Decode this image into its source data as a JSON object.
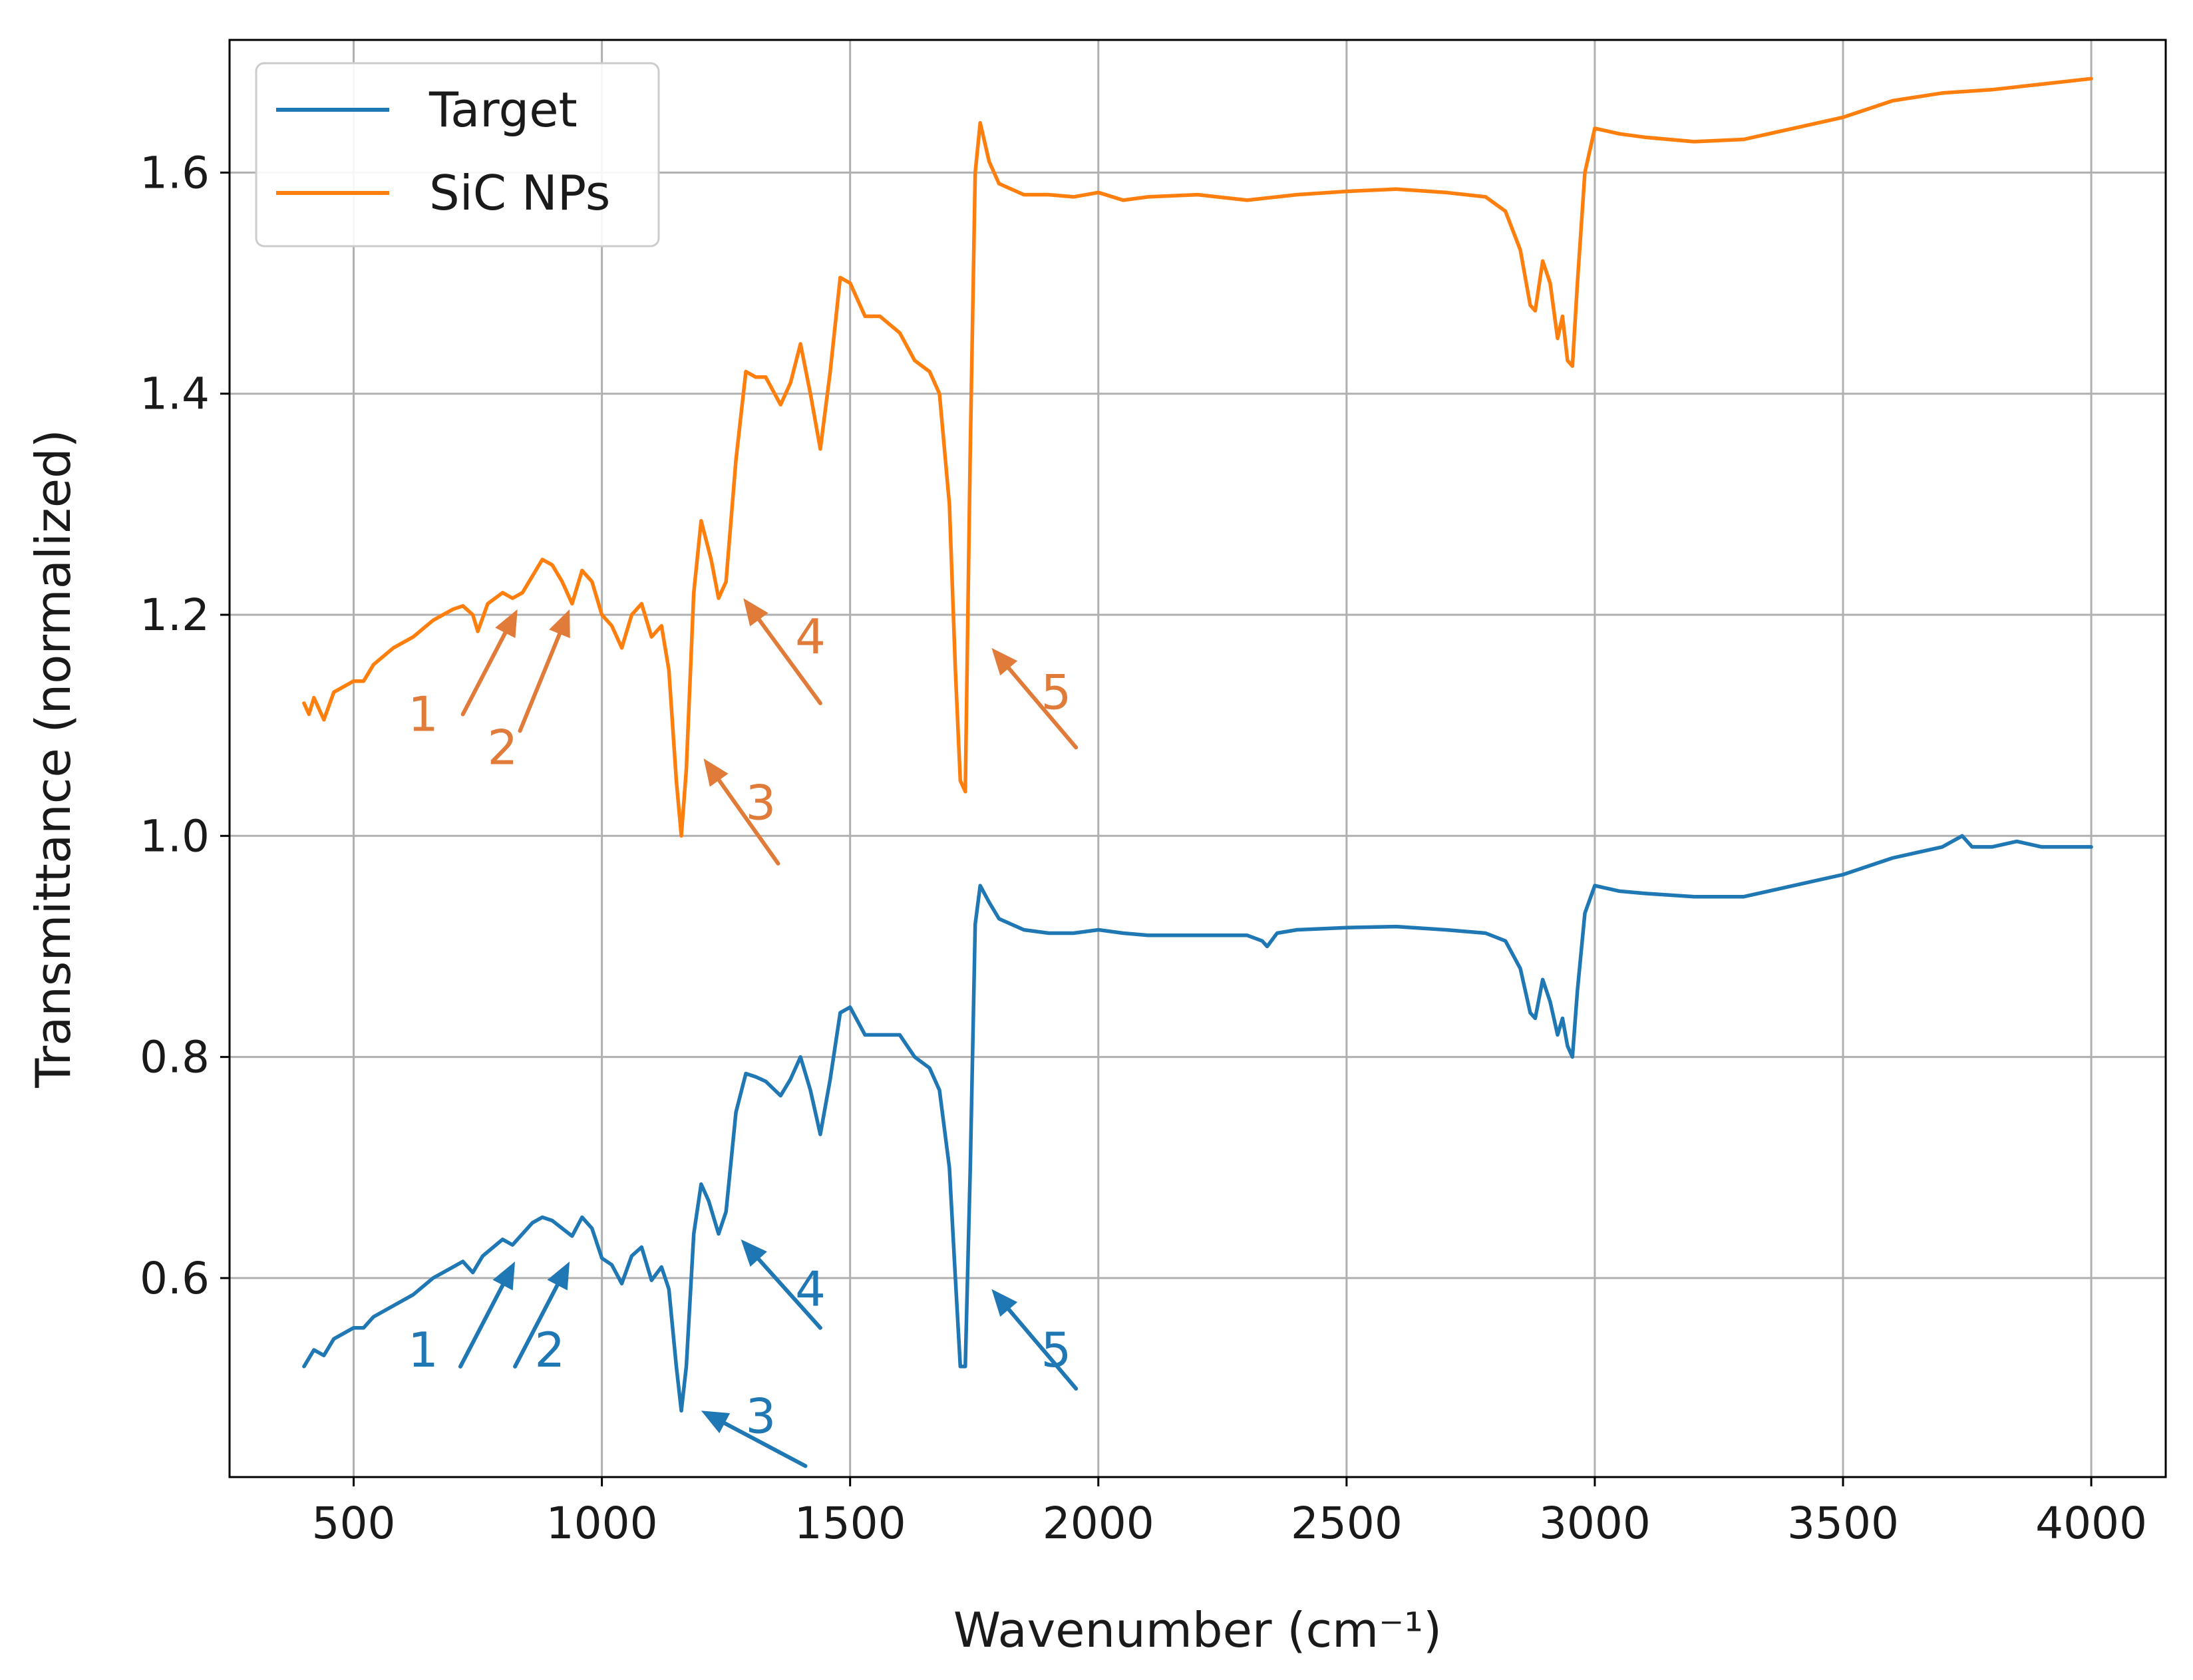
{
  "chart_data": {
    "type": "line",
    "xlabel": "Wavenumber (cm⁻¹)",
    "ylabel": "Transmittance (normalized)",
    "xlim": [
      250,
      4150
    ],
    "ylim": [
      0.42,
      1.72
    ],
    "xticks": [
      500,
      1000,
      1500,
      2000,
      2500,
      3000,
      3500,
      4000
    ],
    "yticks": [
      0.6,
      0.8,
      1.0,
      1.2,
      1.4,
      1.6
    ],
    "grid": true,
    "legend_position": "top-left",
    "series": [
      {
        "name": "Target",
        "color": "#1f77b4",
        "points": [
          [
            400,
            0.52
          ],
          [
            420,
            0.535
          ],
          [
            440,
            0.53
          ],
          [
            460,
            0.545
          ],
          [
            500,
            0.555
          ],
          [
            520,
            0.555
          ],
          [
            540,
            0.565
          ],
          [
            580,
            0.575
          ],
          [
            620,
            0.585
          ],
          [
            660,
            0.6
          ],
          [
            700,
            0.61
          ],
          [
            720,
            0.615
          ],
          [
            740,
            0.605
          ],
          [
            760,
            0.62
          ],
          [
            800,
            0.635
          ],
          [
            820,
            0.63
          ],
          [
            840,
            0.64
          ],
          [
            860,
            0.65
          ],
          [
            880,
            0.655
          ],
          [
            900,
            0.652
          ],
          [
            920,
            0.645
          ],
          [
            940,
            0.638
          ],
          [
            960,
            0.655
          ],
          [
            980,
            0.645
          ],
          [
            1000,
            0.618
          ],
          [
            1020,
            0.612
          ],
          [
            1040,
            0.595
          ],
          [
            1060,
            0.62
          ],
          [
            1080,
            0.628
          ],
          [
            1100,
            0.598
          ],
          [
            1120,
            0.61
          ],
          [
            1135,
            0.59
          ],
          [
            1150,
            0.52
          ],
          [
            1160,
            0.48
          ],
          [
            1170,
            0.52
          ],
          [
            1185,
            0.64
          ],
          [
            1200,
            0.685
          ],
          [
            1215,
            0.67
          ],
          [
            1235,
            0.64
          ],
          [
            1250,
            0.66
          ],
          [
            1270,
            0.75
          ],
          [
            1290,
            0.785
          ],
          [
            1310,
            0.782
          ],
          [
            1330,
            0.778
          ],
          [
            1360,
            0.765
          ],
          [
            1380,
            0.78
          ],
          [
            1400,
            0.8
          ],
          [
            1420,
            0.77
          ],
          [
            1440,
            0.73
          ],
          [
            1460,
            0.78
          ],
          [
            1480,
            0.84
          ],
          [
            1500,
            0.845
          ],
          [
            1530,
            0.82
          ],
          [
            1560,
            0.82
          ],
          [
            1600,
            0.82
          ],
          [
            1630,
            0.8
          ],
          [
            1660,
            0.79
          ],
          [
            1680,
            0.77
          ],
          [
            1700,
            0.7
          ],
          [
            1712,
            0.6
          ],
          [
            1722,
            0.52
          ],
          [
            1732,
            0.52
          ],
          [
            1742,
            0.7
          ],
          [
            1752,
            0.92
          ],
          [
            1762,
            0.955
          ],
          [
            1780,
            0.94
          ],
          [
            1800,
            0.925
          ],
          [
            1850,
            0.915
          ],
          [
            1900,
            0.912
          ],
          [
            1950,
            0.912
          ],
          [
            2000,
            0.915
          ],
          [
            2050,
            0.912
          ],
          [
            2100,
            0.91
          ],
          [
            2200,
            0.91
          ],
          [
            2300,
            0.91
          ],
          [
            2330,
            0.905
          ],
          [
            2340,
            0.9
          ],
          [
            2360,
            0.912
          ],
          [
            2400,
            0.915
          ],
          [
            2500,
            0.917
          ],
          [
            2600,
            0.918
          ],
          [
            2700,
            0.915
          ],
          [
            2780,
            0.912
          ],
          [
            2820,
            0.905
          ],
          [
            2850,
            0.88
          ],
          [
            2870,
            0.84
          ],
          [
            2880,
            0.835
          ],
          [
            2895,
            0.87
          ],
          [
            2910,
            0.85
          ],
          [
            2925,
            0.82
          ],
          [
            2935,
            0.835
          ],
          [
            2945,
            0.81
          ],
          [
            2955,
            0.8
          ],
          [
            2965,
            0.86
          ],
          [
            2980,
            0.93
          ],
          [
            3000,
            0.955
          ],
          [
            3050,
            0.95
          ],
          [
            3100,
            0.948
          ],
          [
            3200,
            0.945
          ],
          [
            3300,
            0.945
          ],
          [
            3400,
            0.955
          ],
          [
            3500,
            0.965
          ],
          [
            3600,
            0.98
          ],
          [
            3650,
            0.985
          ],
          [
            3700,
            0.99
          ],
          [
            3740,
            1.0
          ],
          [
            3760,
            0.99
          ],
          [
            3800,
            0.99
          ],
          [
            3850,
            0.995
          ],
          [
            3900,
            0.99
          ],
          [
            3950,
            0.99
          ],
          [
            4000,
            0.99
          ]
        ]
      },
      {
        "name": "SiC NPs",
        "color": "#ff7f0e",
        "points": [
          [
            400,
            1.12
          ],
          [
            410,
            1.11
          ],
          [
            420,
            1.125
          ],
          [
            440,
            1.105
          ],
          [
            460,
            1.13
          ],
          [
            500,
            1.14
          ],
          [
            520,
            1.14
          ],
          [
            540,
            1.155
          ],
          [
            580,
            1.17
          ],
          [
            620,
            1.18
          ],
          [
            660,
            1.195
          ],
          [
            700,
            1.205
          ],
          [
            720,
            1.208
          ],
          [
            740,
            1.2
          ],
          [
            750,
            1.185
          ],
          [
            770,
            1.21
          ],
          [
            800,
            1.22
          ],
          [
            820,
            1.215
          ],
          [
            840,
            1.22
          ],
          [
            860,
            1.235
          ],
          [
            880,
            1.25
          ],
          [
            900,
            1.245
          ],
          [
            920,
            1.23
          ],
          [
            940,
            1.21
          ],
          [
            960,
            1.24
          ],
          [
            980,
            1.23
          ],
          [
            1000,
            1.2
          ],
          [
            1020,
            1.19
          ],
          [
            1040,
            1.17
          ],
          [
            1060,
            1.2
          ],
          [
            1080,
            1.21
          ],
          [
            1100,
            1.18
          ],
          [
            1120,
            1.19
          ],
          [
            1135,
            1.15
          ],
          [
            1150,
            1.05
          ],
          [
            1160,
            1.0
          ],
          [
            1170,
            1.06
          ],
          [
            1185,
            1.22
          ],
          [
            1200,
            1.285
          ],
          [
            1220,
            1.25
          ],
          [
            1235,
            1.215
          ],
          [
            1250,
            1.23
          ],
          [
            1270,
            1.34
          ],
          [
            1290,
            1.42
          ],
          [
            1310,
            1.415
          ],
          [
            1330,
            1.415
          ],
          [
            1360,
            1.39
          ],
          [
            1380,
            1.41
          ],
          [
            1400,
            1.445
          ],
          [
            1420,
            1.4
          ],
          [
            1440,
            1.35
          ],
          [
            1460,
            1.42
          ],
          [
            1480,
            1.505
          ],
          [
            1500,
            1.5
          ],
          [
            1530,
            1.47
          ],
          [
            1560,
            1.47
          ],
          [
            1600,
            1.455
          ],
          [
            1630,
            1.43
          ],
          [
            1660,
            1.42
          ],
          [
            1680,
            1.4
          ],
          [
            1700,
            1.3
          ],
          [
            1712,
            1.15
          ],
          [
            1722,
            1.05
          ],
          [
            1732,
            1.04
          ],
          [
            1742,
            1.35
          ],
          [
            1752,
            1.6
          ],
          [
            1762,
            1.645
          ],
          [
            1780,
            1.61
          ],
          [
            1800,
            1.59
          ],
          [
            1850,
            1.58
          ],
          [
            1900,
            1.58
          ],
          [
            1950,
            1.578
          ],
          [
            2000,
            1.582
          ],
          [
            2050,
            1.575
          ],
          [
            2100,
            1.578
          ],
          [
            2200,
            1.58
          ],
          [
            2300,
            1.575
          ],
          [
            2400,
            1.58
          ],
          [
            2500,
            1.583
          ],
          [
            2600,
            1.585
          ],
          [
            2700,
            1.582
          ],
          [
            2780,
            1.578
          ],
          [
            2820,
            1.565
          ],
          [
            2850,
            1.53
          ],
          [
            2870,
            1.48
          ],
          [
            2880,
            1.475
          ],
          [
            2895,
            1.52
          ],
          [
            2910,
            1.5
          ],
          [
            2925,
            1.45
          ],
          [
            2935,
            1.47
          ],
          [
            2945,
            1.43
          ],
          [
            2955,
            1.425
          ],
          [
            2965,
            1.5
          ],
          [
            2980,
            1.6
          ],
          [
            3000,
            1.64
          ],
          [
            3050,
            1.635
          ],
          [
            3100,
            1.632
          ],
          [
            3200,
            1.628
          ],
          [
            3300,
            1.63
          ],
          [
            3400,
            1.64
          ],
          [
            3500,
            1.65
          ],
          [
            3600,
            1.665
          ],
          [
            3700,
            1.672
          ],
          [
            3800,
            1.675
          ],
          [
            3900,
            1.68
          ],
          [
            4000,
            1.685
          ]
        ]
      }
    ],
    "annotations": [
      {
        "label": "1",
        "series": "SiC NPs",
        "color": "#e07b39",
        "tip": [
          830,
          1.205
        ],
        "tail": [
          720,
          1.11
        ],
        "text_at": [
          640,
          1.11
        ]
      },
      {
        "label": "2",
        "series": "SiC NPs",
        "color": "#e07b39",
        "tip": [
          935,
          1.205
        ],
        "tail": [
          835,
          1.095
        ],
        "text_at": [
          800,
          1.08
        ]
      },
      {
        "label": "3",
        "series": "SiC NPs",
        "color": "#e07b39",
        "tip": [
          1205,
          1.07
        ],
        "tail": [
          1355,
          0.975
        ],
        "text_at": [
          1320,
          1.03
        ]
      },
      {
        "label": "4",
        "series": "SiC NPs",
        "color": "#e07b39",
        "tip": [
          1285,
          1.215
        ],
        "tail": [
          1440,
          1.12
        ],
        "text_at": [
          1420,
          1.18
        ]
      },
      {
        "label": "5",
        "series": "SiC NPs",
        "color": "#e07b39",
        "tip": [
          1785,
          1.17
        ],
        "tail": [
          1955,
          1.08
        ],
        "text_at": [
          1915,
          1.13
        ]
      },
      {
        "label": "1",
        "series": "Target",
        "color": "#1f77b4",
        "tip": [
          825,
          0.615
        ],
        "tail": [
          715,
          0.52
        ],
        "text_at": [
          640,
          0.535
        ]
      },
      {
        "label": "2",
        "series": "Target",
        "color": "#1f77b4",
        "tip": [
          935,
          0.615
        ],
        "tail": [
          825,
          0.52
        ],
        "text_at": [
          895,
          0.535
        ]
      },
      {
        "label": "3",
        "series": "Target",
        "color": "#1f77b4",
        "tip": [
          1200,
          0.48
        ],
        "tail": [
          1410,
          0.43
        ],
        "text_at": [
          1320,
          0.475
        ]
      },
      {
        "label": "4",
        "series": "Target",
        "color": "#1f77b4",
        "tip": [
          1280,
          0.635
        ],
        "tail": [
          1440,
          0.555
        ],
        "text_at": [
          1420,
          0.59
        ]
      },
      {
        "label": "5",
        "series": "Target",
        "color": "#1f77b4",
        "tip": [
          1785,
          0.59
        ],
        "tail": [
          1955,
          0.5
        ],
        "text_at": [
          1915,
          0.535
        ]
      }
    ]
  }
}
